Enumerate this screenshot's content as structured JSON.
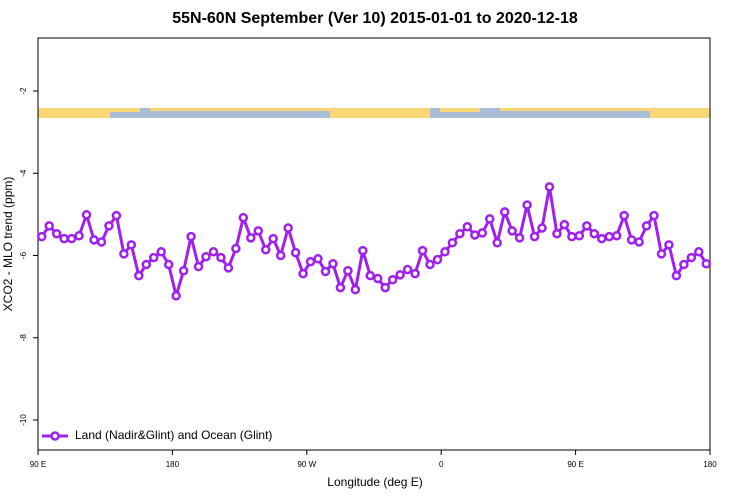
{
  "chart_data": {
    "type": "line",
    "title": "55N-60N September (Ver 10)   2015-01-01 to 2020-12-18",
    "xlabel": "Longitude (deg E)",
    "ylabel": "XCO2 - MLO trend (ppm)",
    "x": [
      92.5,
      97.5,
      102.5,
      107.5,
      112.5,
      117.5,
      122.5,
      127.5,
      132.5,
      137.5,
      142.5,
      147.5,
      152.5,
      157.5,
      162.5,
      167.5,
      172.5,
      177.5,
      182.5,
      187.5,
      192.5,
      197.5,
      202.5,
      207.5,
      212.5,
      217.5,
      222.5,
      227.5,
      232.5,
      237.5,
      242.5,
      247.5,
      252.5,
      257.5,
      262.5,
      267.5,
      272.5,
      277.5,
      282.5,
      287.5,
      292.5,
      297.5,
      302.5,
      307.5,
      312.5,
      317.5,
      322.5,
      327.5,
      332.5,
      337.5,
      342.5,
      347.5,
      352.5,
      357.5,
      362.5,
      367.5,
      372.5,
      377.5,
      382.5,
      387.5,
      392.5,
      397.5,
      402.5,
      407.5,
      412.5,
      417.5,
      422.5,
      427.5,
      432.5,
      437.5,
      442.5,
      447.5,
      452.5,
      457.5,
      462.5,
      467.5,
      472.5,
      477.5,
      482.5,
      487.5,
      492.5,
      497.5,
      502.5,
      507.5,
      512.5,
      517.5,
      522.5,
      527.5,
      532.5,
      537.5
    ],
    "series": [
      {
        "name": "Land (Nadir&Glint) and Ocean (Glint)",
        "color": "#a020f0",
        "values": [
          -5.54,
          -5.28,
          -5.47,
          -5.59,
          -5.59,
          -5.52,
          -5.01,
          -5.62,
          -5.67,
          -5.28,
          -5.03,
          -5.96,
          -5.74,
          -6.49,
          -6.22,
          -6.05,
          -5.91,
          -6.22,
          -6.98,
          -6.37,
          -5.54,
          -6.27,
          -6.03,
          -5.91,
          -6.05,
          -6.3,
          -5.83,
          -5.08,
          -5.57,
          -5.4,
          -5.86,
          -5.59,
          -6.0,
          -5.33,
          -5.93,
          -6.44,
          -6.15,
          -6.08,
          -6.39,
          -6.2,
          -6.78,
          -6.37,
          -6.83,
          -5.88,
          -6.49,
          -6.56,
          -6.78,
          -6.59,
          -6.47,
          -6.34,
          -6.44,
          -5.88,
          -6.22,
          -6.1,
          -5.91,
          -5.69,
          -5.47,
          -5.3,
          -5.5,
          -5.45,
          -5.11,
          -5.69,
          -4.94,
          -5.4,
          -5.57,
          -4.77,
          -5.54,
          -5.33,
          -4.33,
          -5.47,
          -5.25,
          -5.54,
          -5.52,
          -5.28,
          -5.47,
          -5.59,
          -5.54,
          -5.52,
          -5.03,
          -5.62,
          -5.67,
          -5.28,
          -5.03,
          -5.96,
          -5.74,
          -6.49,
          -6.22,
          -6.05,
          -5.91,
          -6.2
        ]
      }
    ],
    "xlim": [
      90,
      540
    ],
    "xticks": [
      {
        "value": 90,
        "label": "90 E"
      },
      180,
      {
        "value": 270,
        "label": "90 W"
      },
      {
        "value": 360,
        "label": "0"
      },
      {
        "value": 450,
        "label": "90 E"
      },
      {
        "value": 540,
        "label": "180"
      }
    ],
    "ylim": [
      -10.73,
      -0.71
    ],
    "yticks": [
      -10,
      -8,
      -6,
      -4,
      -2
    ],
    "legend": "bottom-left"
  }
}
